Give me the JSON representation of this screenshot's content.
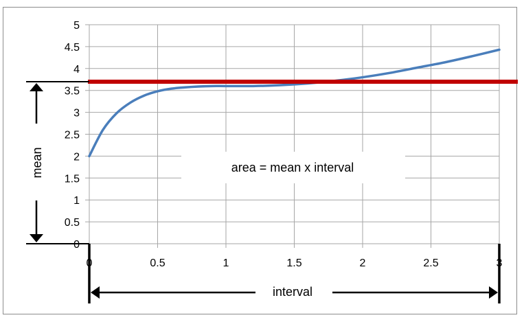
{
  "chart_data": {
    "type": "line",
    "xlim": [
      0,
      3
    ],
    "ylim": [
      0,
      5
    ],
    "x_ticks": [
      "0",
      "0.5",
      "1",
      "1.5",
      "2",
      "2.5",
      "3"
    ],
    "y_ticks": [
      "0",
      "0.5",
      "1",
      "1.5",
      "2",
      "2.5",
      "3",
      "3.5",
      "4",
      "4.5",
      "5"
    ],
    "grid": true,
    "series": [
      {
        "color": "#4a7ebb",
        "x": [
          0,
          0.1,
          0.2,
          0.3,
          0.4,
          0.5,
          0.6,
          0.7,
          0.8,
          0.9,
          1.0,
          1.2,
          1.4,
          1.6,
          1.8,
          2.0,
          2.2,
          2.4,
          2.6,
          2.8,
          3.0
        ],
        "y": [
          2.0,
          2.6,
          2.98,
          3.22,
          3.38,
          3.48,
          3.54,
          3.57,
          3.59,
          3.6,
          3.6,
          3.6,
          3.62,
          3.66,
          3.72,
          3.8,
          3.9,
          4.02,
          4.14,
          4.28,
          4.43
        ]
      }
    ],
    "mean_line": {
      "y": 3.7,
      "color": "#c00000"
    },
    "annotation": "area = mean x interval",
    "mean_label": "mean",
    "interval_label": "interval"
  }
}
